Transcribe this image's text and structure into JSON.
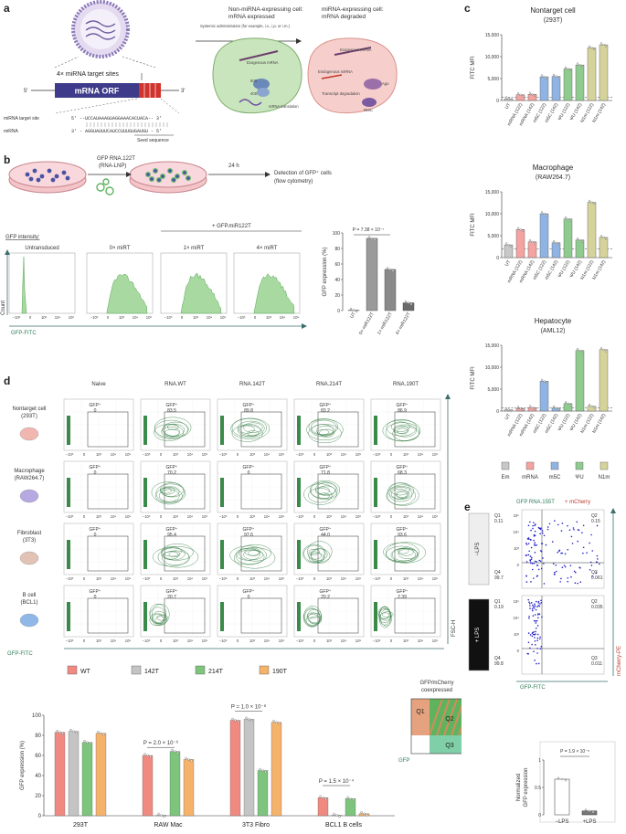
{
  "panel_a": {
    "letter": "a",
    "construct": {
      "sites_label": "4× miRNA target sites",
      "orf_label": "mRNA ORF",
      "five_prime": "5′",
      "three_prime": "3′",
      "target_site_label": "miRNA target site",
      "target_site_seq": "5′ --UCCAUAAAGUAGGAAACACUACA-- 3′",
      "mirna_label": "miRNA",
      "mirna_seq": "3′ - AGGUAUUUCAUCCUUUGUGAUGU - 5′",
      "seed_label": "Seed sequence"
    },
    "arrow_text": "Systemic administration (for example, i.v., i.p. or i.m.)",
    "non_expr_title_1": "Non-miRNA-expressing cell:",
    "non_expr_title_2": "mRNA expressed",
    "expr_title_1": "miRNA-expressing cell:",
    "expr_title_2": "mRNA degraded",
    "cell1_labels": [
      "Exogenous mRNA",
      "60S",
      "40S",
      "mRNA translation"
    ],
    "cell2_labels": [
      "Exogenous mRNA",
      "Endogenous miRNA",
      "Ago",
      "Transcript degradation",
      "RISC"
    ]
  },
  "panel_b": {
    "letter": "b",
    "lnp_label_1": "GFP RNA.122T",
    "lnp_label_2": "(RNA-LNP)",
    "time_label": "24 h",
    "detection_1": "Detection of GFP⁺ cells",
    "detection_2": "(flow cytometry)",
    "gfp_intensity": "GFP intensity:",
    "plus_label": "+ GFP.miR122T",
    "hist_titles": [
      "Untransduced",
      "0× miRT",
      "1× miRT",
      "4× miRT"
    ],
    "hist_ticks": [
      "−10³",
      "0",
      "10³",
      "10⁴",
      "10⁵"
    ],
    "y_axis": "Count",
    "x_axis": "GFP-FITC",
    "bar_pvalue": "P = 7.38 × 10⁻⁷",
    "bar_ylabel": "GFP expression (%)"
  },
  "panel_c": {
    "letter": "c",
    "ylabel": "FITC MFI",
    "categories": [
      "UT",
      "mRNA (122)",
      "mRNA (142)",
      "m5C (122)",
      "m5C (142)",
      "ΨU (122)",
      "ΨU (142)",
      "N1m (122)",
      "N1m (142)"
    ],
    "legend": [
      {
        "label": "Em",
        "color": "#c8c8c8"
      },
      {
        "label": "mRNA",
        "color": "#f4a3a0"
      },
      {
        "label": "m5C",
        "color": "#8fb4e3"
      },
      {
        "label": "ΨU",
        "color": "#8fcb8f"
      },
      {
        "label": "N1m",
        "color": "#d6d39a"
      }
    ]
  },
  "panel_d": {
    "letter": "d",
    "col_titles": [
      "Naive",
      "RNA.WT",
      "RNA.142T",
      "RNA.214T",
      "RNA.190T"
    ],
    "rows": [
      {
        "name_1": "Nontarget cell",
        "name_2": "(293T)",
        "values": [
          "0",
          "83.5",
          "89.8",
          "83.2",
          "86.9"
        ]
      },
      {
        "name_1": "Macrophage",
        "name_2": "(RAW264.7)",
        "values": [
          "0",
          "70.2",
          "0",
          "71.8",
          "68.3"
        ]
      },
      {
        "name_1": "Fibroblast",
        "name_2": "(3T3)",
        "values": [
          "0",
          "95.4",
          "97.6",
          "44.0",
          "93.6"
        ]
      },
      {
        "name_1": "B cell",
        "name_2": "(BCL1)",
        "values": [
          "0",
          "20.7",
          "0",
          "20.2",
          "2.39"
        ]
      }
    ],
    "gate_label": "GFP⁺",
    "x_axis": "GFP-FITC",
    "y_axis": "FSC-H",
    "ticks": [
      "−10³",
      "0",
      "10³",
      "10⁴",
      "10⁵"
    ],
    "bar_ylabel": "GFP expression (%)",
    "legend": [
      {
        "label": "WT",
        "color": "#f08a80"
      },
      {
        "label": "142T",
        "color": "#c4c4c4"
      },
      {
        "label": "214T",
        "color": "#7dc47d"
      },
      {
        "label": "190T",
        "color": "#f5b26b"
      }
    ],
    "groups": [
      "293T",
      "RAW Mac",
      "3T3 Fibro",
      "BCL1 B cells"
    ],
    "pvalues": [
      "P = 2.0 × 10⁻⁶",
      "P = 1.0 × 10⁻⁸",
      "P = 1.5 × 10⁻⁴"
    ],
    "quad_title_1": "GFP/mCherry",
    "quad_title_2": "coexpressed",
    "quad_labels": [
      "Q1",
      "Q2",
      "Q3"
    ],
    "quad_x": "GFP",
    "quad_y": "mCherry"
  },
  "panel_e": {
    "letter": "e",
    "title_1": "GFP RNA.155T",
    "title_2": " + mCherry",
    "conditions": [
      "−LPS",
      "+ LPS"
    ],
    "quads_top": {
      "q1": "Q1",
      "q1v": "0.11",
      "q2": "Q2",
      "q2v": "0.15",
      "q3": "Q3",
      "q3v": "0.061",
      "q4": "Q4",
      "q4v": "99.7"
    },
    "quads_bottom": {
      "q1": "Q1",
      "q1v": "0.19",
      "q2": "Q2",
      "q2v": "0.035",
      "q3": "Q3",
      "q3v": "0.011",
      "q4": "Q4",
      "q4v": "99.8"
    },
    "x_axis": "GFP-FITC",
    "y_axis": "mCherry-PE",
    "bar_pvalue": "P = 1.9 × 10⁻⁵",
    "bar_ylabel_1": "Normalized",
    "bar_ylabel_2": "GFP expression",
    "bar_categories": [
      "−LPS",
      "+LPS"
    ]
  },
  "chart_data": [
    {
      "type": "bar",
      "title": "",
      "categories": [
        "UT",
        "0× miR122T",
        "1× miR122T",
        "4× miR122T"
      ],
      "values": [
        0.5,
        93,
        53,
        10
      ],
      "ylabel": "GFP expression (%)",
      "ylim": [
        0,
        100
      ],
      "yticks": [
        0,
        20,
        40,
        60,
        80,
        100
      ],
      "annotation": "P = 7.38 × 10⁻⁷"
    },
    {
      "type": "bar",
      "title": "Nontarget cell",
      "subtitle": "(293T)",
      "categories": [
        "UT",
        "mRNA (122)",
        "mRNA (142)",
        "m5C (122)",
        "m5C (142)",
        "ΨU (122)",
        "ΨU (142)",
        "N1m (122)",
        "N1m (142)"
      ],
      "values": [
        400,
        1300,
        1400,
        5400,
        5500,
        7200,
        8100,
        12000,
        12700
      ],
      "ylabel": "FITC MFI",
      "ylim": [
        0,
        15000
      ],
      "yticks": [
        0,
        5000,
        10000,
        15000
      ]
    },
    {
      "type": "bar",
      "title": "Macrophage",
      "subtitle": "(RAW264.7)",
      "categories": [
        "UT",
        "mRNA (122)",
        "mRNA (142)",
        "m5C (122)",
        "m5C (142)",
        "ΨU (122)",
        "ΨU (142)",
        "N1m (122)",
        "N1m (142)"
      ],
      "values": [
        2900,
        6400,
        3600,
        10000,
        3400,
        8800,
        4000,
        12600,
        4600
      ],
      "ylabel": "FITC MFI",
      "ylim": [
        0,
        15000
      ],
      "yticks": [
        0,
        5000,
        10000,
        15000
      ]
    },
    {
      "type": "bar",
      "title": "Hepatocyte",
      "subtitle": "(AML12)",
      "categories": [
        "UT",
        "mRNA (122)",
        "mRNA (142)",
        "m5C (122)",
        "m5C (142)",
        "ΨU (122)",
        "ΨU (142)",
        "N1m (122)",
        "N1m (142)"
      ],
      "values": [
        300,
        600,
        800,
        6800,
        700,
        1700,
        13800,
        1100,
        14000
      ],
      "ylabel": "FITC MFI",
      "ylim": [
        0,
        15000
      ],
      "yticks": [
        0,
        5000,
        10000,
        15000
      ]
    },
    {
      "type": "bar",
      "title": "",
      "categories": [
        "293T",
        "RAW Mac",
        "3T3 Fibro",
        "BCL1 B cells"
      ],
      "series": [
        {
          "name": "WT",
          "values": [
            83,
            60,
            95,
            18
          ]
        },
        {
          "name": "142T",
          "values": [
            84,
            0.5,
            96,
            0.5
          ]
        },
        {
          "name": "214T",
          "values": [
            73,
            64,
            45,
            17
          ]
        },
        {
          "name": "190T",
          "values": [
            82,
            56,
            93,
            2
          ]
        }
      ],
      "ylabel": "GFP expression (%)",
      "ylim": [
        0,
        100
      ],
      "yticks": [
        0,
        20,
        40,
        60,
        80,
        100
      ]
    },
    {
      "type": "bar",
      "title": "",
      "categories": [
        "−LPS",
        "+LPS"
      ],
      "values": [
        0.65,
        0.07
      ],
      "ylabel": "Normalized GFP expression",
      "ylim": [
        0,
        1.0
      ],
      "yticks": [
        0,
        0.5,
        1.0
      ],
      "annotation": "P = 1.9 × 10⁻⁵"
    }
  ]
}
